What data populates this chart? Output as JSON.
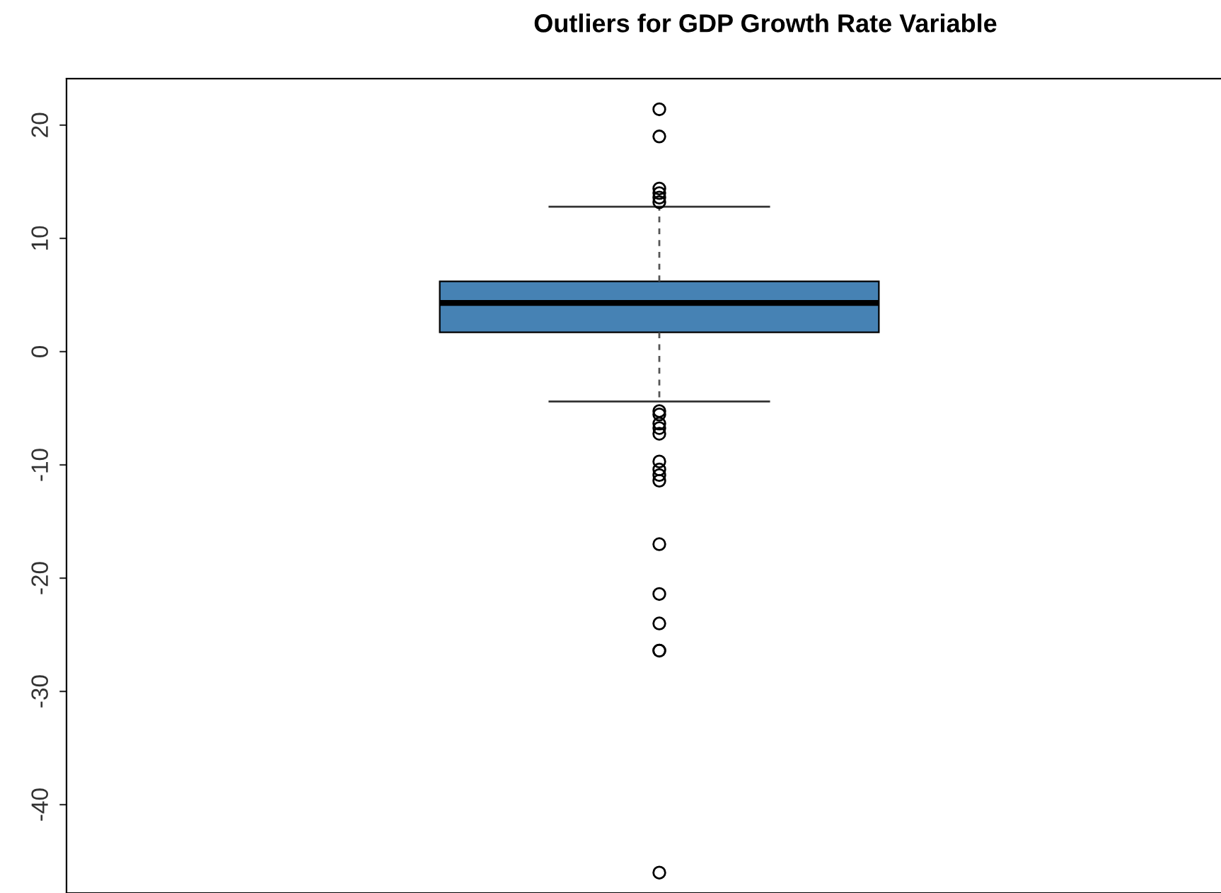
{
  "chart_data": {
    "type": "box",
    "title": "Outliers for GDP Growth Rate Variable",
    "categories": [
      null
    ],
    "series": [
      {
        "color": "#4682b4",
        "boxes": [
          {
            "low": -4.4,
            "q1": 1.7,
            "median": 4.3,
            "q3": 6.2,
            "high": 12.8,
            "outliers": [
              21.4,
              19.0,
              14.4,
              14.0,
              13.6,
              13.2,
              -5.25,
              -5.55,
              -6.35,
              -6.75,
              -7.25,
              -9.7,
              -10.4,
              -10.9,
              -11.4,
              -17.0,
              -21.4,
              -24.0,
              -26.4,
              -26.4,
              -46.0
            ]
          }
        ]
      }
    ],
    "ylim": [
      -47.8,
      24.1
    ],
    "yticks": [
      -40,
      -30,
      -20,
      -10,
      0,
      10,
      20
    ],
    "grid": false,
    "tick_labels": "y"
  }
}
